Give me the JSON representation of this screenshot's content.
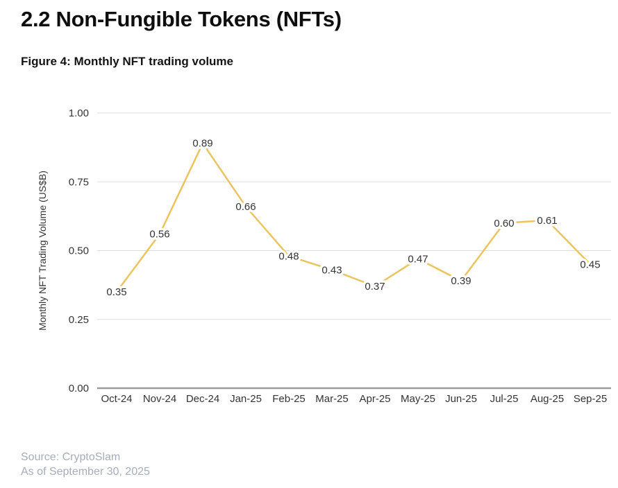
{
  "page": {
    "title": "2.2 Non-Fungible Tokens (NFTs)",
    "figure_caption": "Figure 4: Monthly NFT trading volume",
    "source_line1": "Source: CryptoSlam",
    "source_line2": "As of September 30, 2025"
  },
  "colors": {
    "line": "#ecc45e",
    "grid": "#dddddd",
    "axis": "#9b9b9b",
    "text": "#333333",
    "title": "#0e0e0e",
    "muted": "#a6adba"
  },
  "chart_data": {
    "type": "line",
    "title": "Figure 4: Monthly NFT trading volume",
    "categories": [
      "Oct-24",
      "Nov-24",
      "Dec-24",
      "Jan-25",
      "Feb-25",
      "Mar-25",
      "Apr-25",
      "May-25",
      "Jun-25",
      "Jul-25",
      "Aug-25",
      "Sep-25"
    ],
    "series": [
      {
        "name": "Monthly NFT trading volume",
        "values": [
          0.35,
          0.56,
          0.89,
          0.66,
          0.48,
          0.43,
          0.37,
          0.47,
          0.39,
          0.6,
          0.61,
          0.45
        ]
      }
    ],
    "value_label_format": "0.00",
    "data_labels": [
      "0.35",
      "0.56",
      "0.89",
      "0.66",
      "0.48",
      "0.43",
      "0.37",
      "0.47",
      "0.39",
      "0.60",
      "0.61",
      "0.45"
    ],
    "xlabel": "",
    "ylabel": "Monthly NFT Trading Volume (US$B)",
    "ylim": [
      0,
      1
    ],
    "yticks": [
      0.0,
      0.25,
      0.5,
      0.75,
      1.0
    ],
    "ytick_labels": [
      "0.00",
      "0.25",
      "0.50",
      "0.75",
      "1.00"
    ],
    "grid": "horizontal",
    "legend": "none",
    "line_color": "#ecc45e"
  }
}
